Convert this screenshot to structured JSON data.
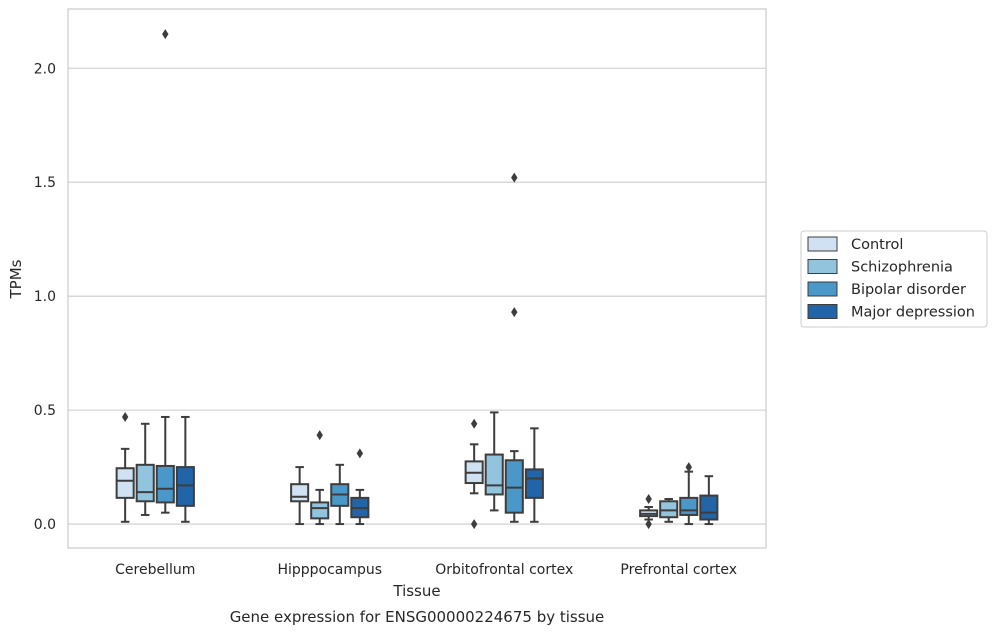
{
  "chart_data": {
    "type": "box",
    "title": "",
    "caption": "Gene expression for ENSG00000224675 by tissue",
    "xlabel": "Tissue",
    "ylabel": "TPMs",
    "ylim": [
      -0.105,
      2.26
    ],
    "yticks": [
      "0.0",
      "0.5",
      "1.0",
      "1.5",
      "2.0"
    ],
    "grid": "horizontal",
    "legend_position": "right",
    "categories": [
      "Cerebellum",
      "Hipppocampus",
      "Orbitofrontal cortex",
      "Prefrontal cortex"
    ],
    "series": [
      {
        "name": "Control",
        "color": "#cfe1f2",
        "boxes": [
          {
            "whislo": 0.01,
            "q1": 0.115,
            "med": 0.19,
            "q3": 0.245,
            "whishi": 0.33,
            "fliers": [
              0.47
            ]
          },
          {
            "whislo": 0.0,
            "q1": 0.1,
            "med": 0.12,
            "q3": 0.175,
            "whishi": 0.25,
            "fliers": []
          },
          {
            "whislo": 0.135,
            "q1": 0.18,
            "med": 0.225,
            "q3": 0.275,
            "whishi": 0.35,
            "fliers": [
              0.44,
              0.0
            ]
          },
          {
            "whislo": 0.02,
            "q1": 0.035,
            "med": 0.045,
            "q3": 0.06,
            "whishi": 0.075,
            "fliers": [
              0.11,
              0.0
            ]
          }
        ]
      },
      {
        "name": "Schizophrenia",
        "color": "#93c4de",
        "boxes": [
          {
            "whislo": 0.04,
            "q1": 0.1,
            "med": 0.14,
            "q3": 0.26,
            "whishi": 0.44,
            "fliers": []
          },
          {
            "whislo": 0.0,
            "q1": 0.025,
            "med": 0.07,
            "q3": 0.095,
            "whishi": 0.15,
            "fliers": [
              0.39
            ]
          },
          {
            "whislo": 0.06,
            "q1": 0.13,
            "med": 0.17,
            "q3": 0.305,
            "whishi": 0.49,
            "fliers": []
          },
          {
            "whislo": 0.01,
            "q1": 0.03,
            "med": 0.06,
            "q3": 0.1,
            "whishi": 0.11,
            "fliers": []
          }
        ]
      },
      {
        "name": "Bipolar disorder",
        "color": "#4a98c9",
        "boxes": [
          {
            "whislo": 0.05,
            "q1": 0.095,
            "med": 0.155,
            "q3": 0.255,
            "whishi": 0.47,
            "fliers": [
              2.15
            ]
          },
          {
            "whislo": 0.0,
            "q1": 0.08,
            "med": 0.13,
            "q3": 0.175,
            "whishi": 0.26,
            "fliers": []
          },
          {
            "whislo": 0.01,
            "q1": 0.05,
            "med": 0.16,
            "q3": 0.28,
            "whishi": 0.32,
            "fliers": [
              1.52,
              0.93
            ]
          },
          {
            "whislo": 0.0,
            "q1": 0.04,
            "med": 0.06,
            "q3": 0.115,
            "whishi": 0.23,
            "fliers": [
              0.25
            ]
          }
        ]
      },
      {
        "name": "Major depression",
        "color": "#2164a8",
        "boxes": [
          {
            "whislo": 0.01,
            "q1": 0.08,
            "med": 0.17,
            "q3": 0.25,
            "whishi": 0.47,
            "fliers": []
          },
          {
            "whislo": 0.0,
            "q1": 0.03,
            "med": 0.07,
            "q3": 0.115,
            "whishi": 0.15,
            "fliers": [
              0.31
            ]
          },
          {
            "whislo": 0.01,
            "q1": 0.115,
            "med": 0.2,
            "q3": 0.24,
            "whishi": 0.42,
            "fliers": []
          },
          {
            "whislo": 0.0,
            "q1": 0.02,
            "med": 0.05,
            "q3": 0.125,
            "whishi": 0.21,
            "fliers": []
          }
        ]
      }
    ]
  }
}
